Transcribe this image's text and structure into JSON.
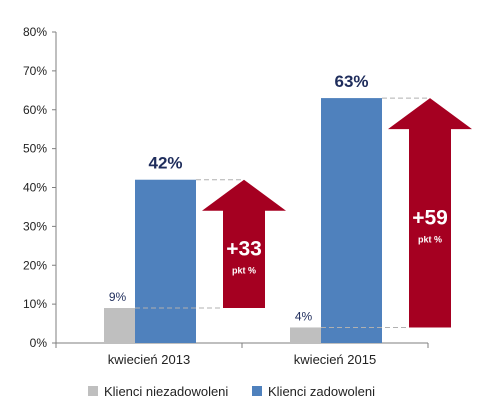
{
  "chart_data": {
    "type": "bar",
    "categories": [
      "kwiecień 2013",
      "kwiecień 2015"
    ],
    "series": [
      {
        "name": "Klienci niezadowoleni",
        "values": [
          9,
          4
        ],
        "labels": [
          "9%",
          "4%"
        ],
        "color": "#bfbfbf"
      },
      {
        "name": "Klienci zadowoleni",
        "values": [
          42,
          63
        ],
        "labels": [
          "42%",
          "63%"
        ],
        "color": "#4f81bd"
      }
    ],
    "ylim": [
      0,
      80
    ],
    "yticks": [
      "0%",
      "10%",
      "20%",
      "30%",
      "40%",
      "50%",
      "60%",
      "70%",
      "80%"
    ],
    "grid": false,
    "legend_position": "bottom",
    "annotations": [
      {
        "category": "kwiecień 2013",
        "text": "+33",
        "subtext": "pkt %",
        "from": 9,
        "to": 42,
        "color": "#a50021"
      },
      {
        "category": "kwiecień 2015",
        "text": "+59",
        "subtext": "pkt %",
        "from": 4,
        "to": 63,
        "color": "#a50021"
      }
    ]
  }
}
